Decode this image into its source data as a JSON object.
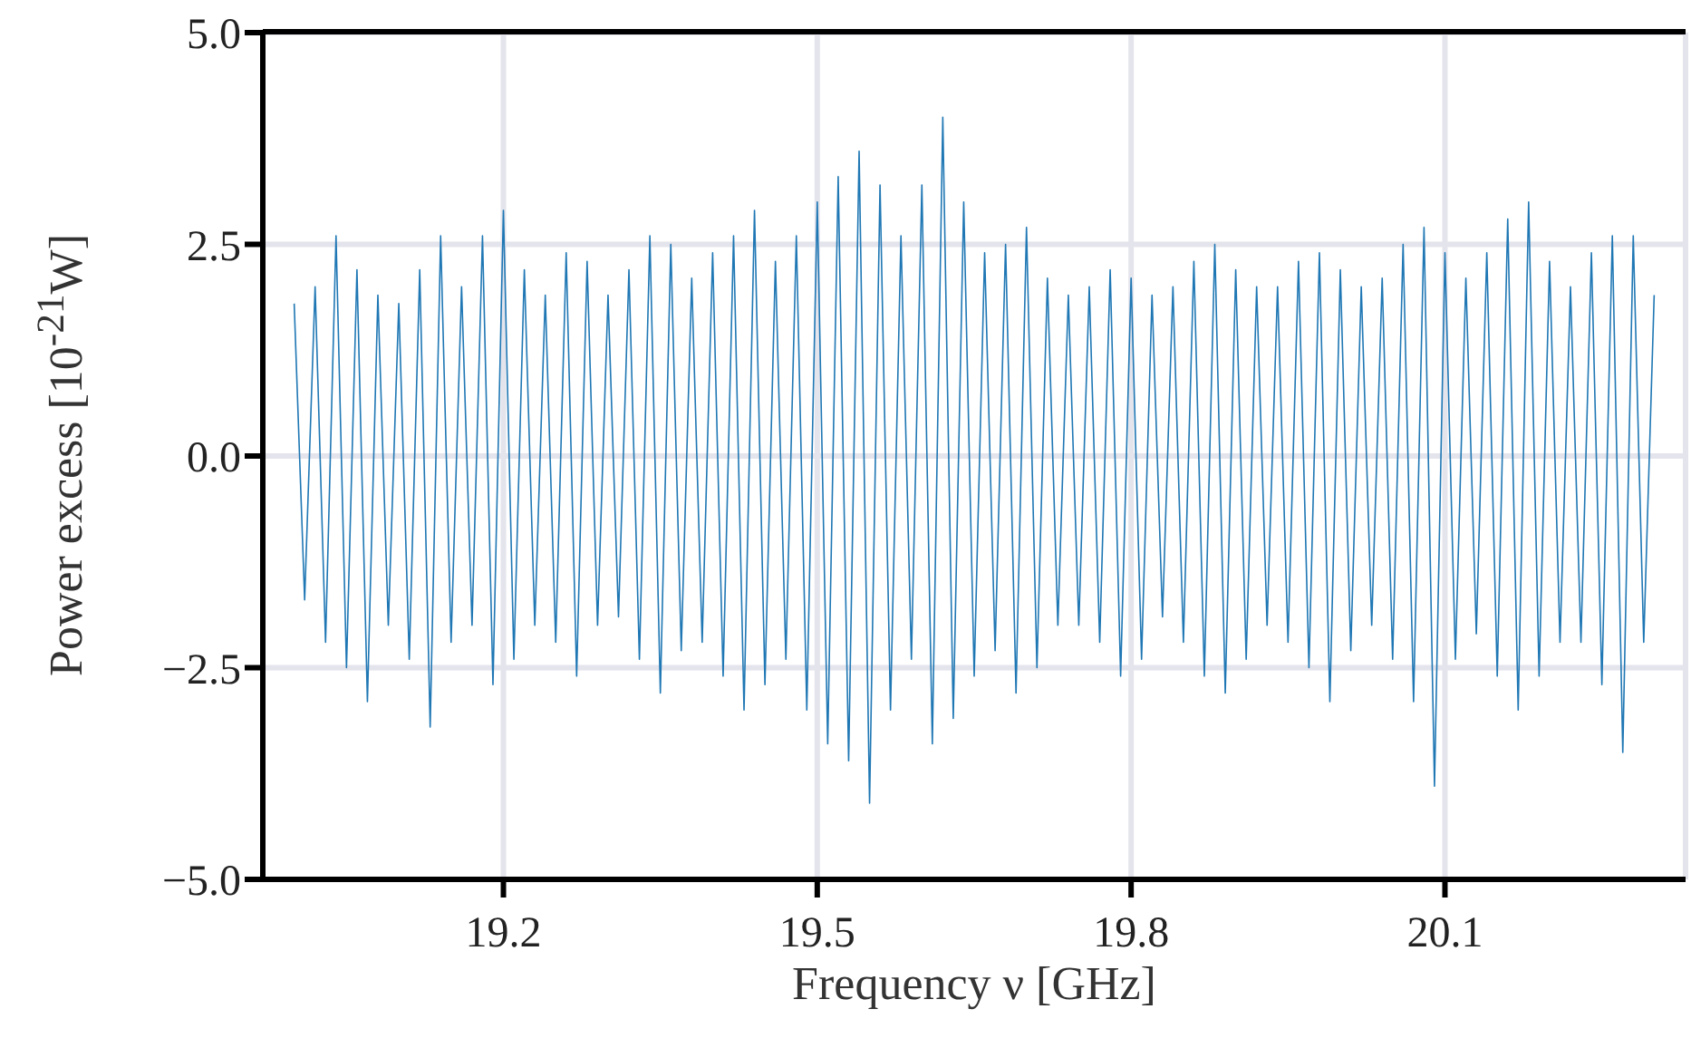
{
  "chart_data": {
    "type": "line",
    "xlabel": "Frequency ν [GHz]",
    "ylabel": "Power excess [10$^{-21}$W]",
    "x": [
      19.0,
      19.01,
      19.02,
      19.03,
      19.04,
      19.05,
      19.06,
      19.07,
      19.08,
      19.09,
      19.1,
      19.11,
      19.12,
      19.13,
      19.14,
      19.15,
      19.16,
      19.17,
      19.18,
      19.19,
      19.2,
      19.21,
      19.22,
      19.23,
      19.24,
      19.25,
      19.26,
      19.27,
      19.28,
      19.29,
      19.3,
      19.31,
      19.32,
      19.33,
      19.34,
      19.35,
      19.36,
      19.37,
      19.38,
      19.39,
      19.4,
      19.41,
      19.42,
      19.43,
      19.44,
      19.45,
      19.46,
      19.47,
      19.48,
      19.49,
      19.5,
      19.51,
      19.52,
      19.53,
      19.54,
      19.55,
      19.56,
      19.57,
      19.58,
      19.59,
      19.6,
      19.61,
      19.62,
      19.63,
      19.64,
      19.65,
      19.66,
      19.67,
      19.68,
      19.69,
      19.7,
      19.71,
      19.72,
      19.73,
      19.74,
      19.75,
      19.76,
      19.77,
      19.78,
      19.79,
      19.8,
      19.81,
      19.82,
      19.83,
      19.84,
      19.85,
      19.86,
      19.87,
      19.88,
      19.89,
      19.9,
      19.91,
      19.92,
      19.93,
      19.94,
      19.95,
      19.96,
      19.97,
      19.98,
      19.99,
      20.0,
      20.01,
      20.02,
      20.03,
      20.04,
      20.05,
      20.06,
      20.07,
      20.08,
      20.09,
      20.1,
      20.11,
      20.12,
      20.13,
      20.14,
      20.15,
      20.16,
      20.17,
      20.18,
      20.19,
      20.2,
      20.21,
      20.22,
      20.23,
      20.24,
      20.25,
      20.26,
      20.27,
      20.28,
      20.29,
      20.3
    ],
    "series": [
      {
        "color": "#1f77b4",
        "values": [
          1.8,
          -1.7,
          2.0,
          -2.2,
          2.6,
          -2.5,
          2.2,
          -2.9,
          1.9,
          -2.0,
          1.8,
          -2.4,
          2.2,
          -3.2,
          2.6,
          -2.2,
          2.0,
          -2.0,
          2.6,
          -2.7,
          2.9,
          -2.4,
          2.2,
          -2.0,
          1.9,
          -2.2,
          2.4,
          -2.6,
          2.3,
          -2.0,
          1.9,
          -1.9,
          2.2,
          -2.4,
          2.6,
          -2.8,
          2.5,
          -2.3,
          2.1,
          -2.2,
          2.4,
          -2.6,
          2.6,
          -3.0,
          2.9,
          -2.7,
          2.3,
          -2.4,
          2.6,
          -3.0,
          3.0,
          -3.4,
          3.3,
          -3.6,
          3.6,
          -4.1,
          3.2,
          -3.0,
          2.6,
          -2.4,
          3.2,
          -3.4,
          4.0,
          -3.1,
          3.0,
          -2.6,
          2.4,
          -2.3,
          2.5,
          -2.8,
          2.7,
          -2.5,
          2.1,
          -2.0,
          1.9,
          -2.0,
          2.0,
          -2.2,
          2.2,
          -2.6,
          2.1,
          -2.4,
          1.9,
          -1.9,
          2.0,
          -2.2,
          2.3,
          -2.6,
          2.5,
          -2.8,
          2.2,
          -2.4,
          2.0,
          -2.0,
          2.0,
          -2.2,
          2.3,
          -2.5,
          2.4,
          -2.9,
          2.2,
          -2.3,
          2.0,
          -2.0,
          2.1,
          -2.4,
          2.5,
          -2.9,
          2.7,
          -3.9,
          2.4,
          -2.4,
          2.1,
          -2.1,
          2.4,
          -2.6,
          2.8,
          -3.0,
          3.0,
          -2.6,
          2.3,
          -2.2,
          2.0,
          -2.2,
          2.4,
          -2.7,
          2.6,
          -3.5,
          2.6,
          -2.2,
          1.9
        ]
      }
    ],
    "xlim": [
      18.97,
      20.33
    ],
    "xticks": [
      19.2,
      19.5,
      19.8,
      20.1
    ],
    "ylim": [
      -5,
      5
    ],
    "yticks": [
      {
        "value": -5,
        "label": "−5.0"
      },
      {
        "value": -2.5,
        "label": "−2.5"
      },
      {
        "value": 0,
        "label": "0.0"
      },
      {
        "value": 2.5,
        "label": "2.5"
      },
      {
        "value": 5,
        "label": "5.0"
      }
    ],
    "grid": true,
    "marker": "none",
    "line_style": "solid"
  }
}
